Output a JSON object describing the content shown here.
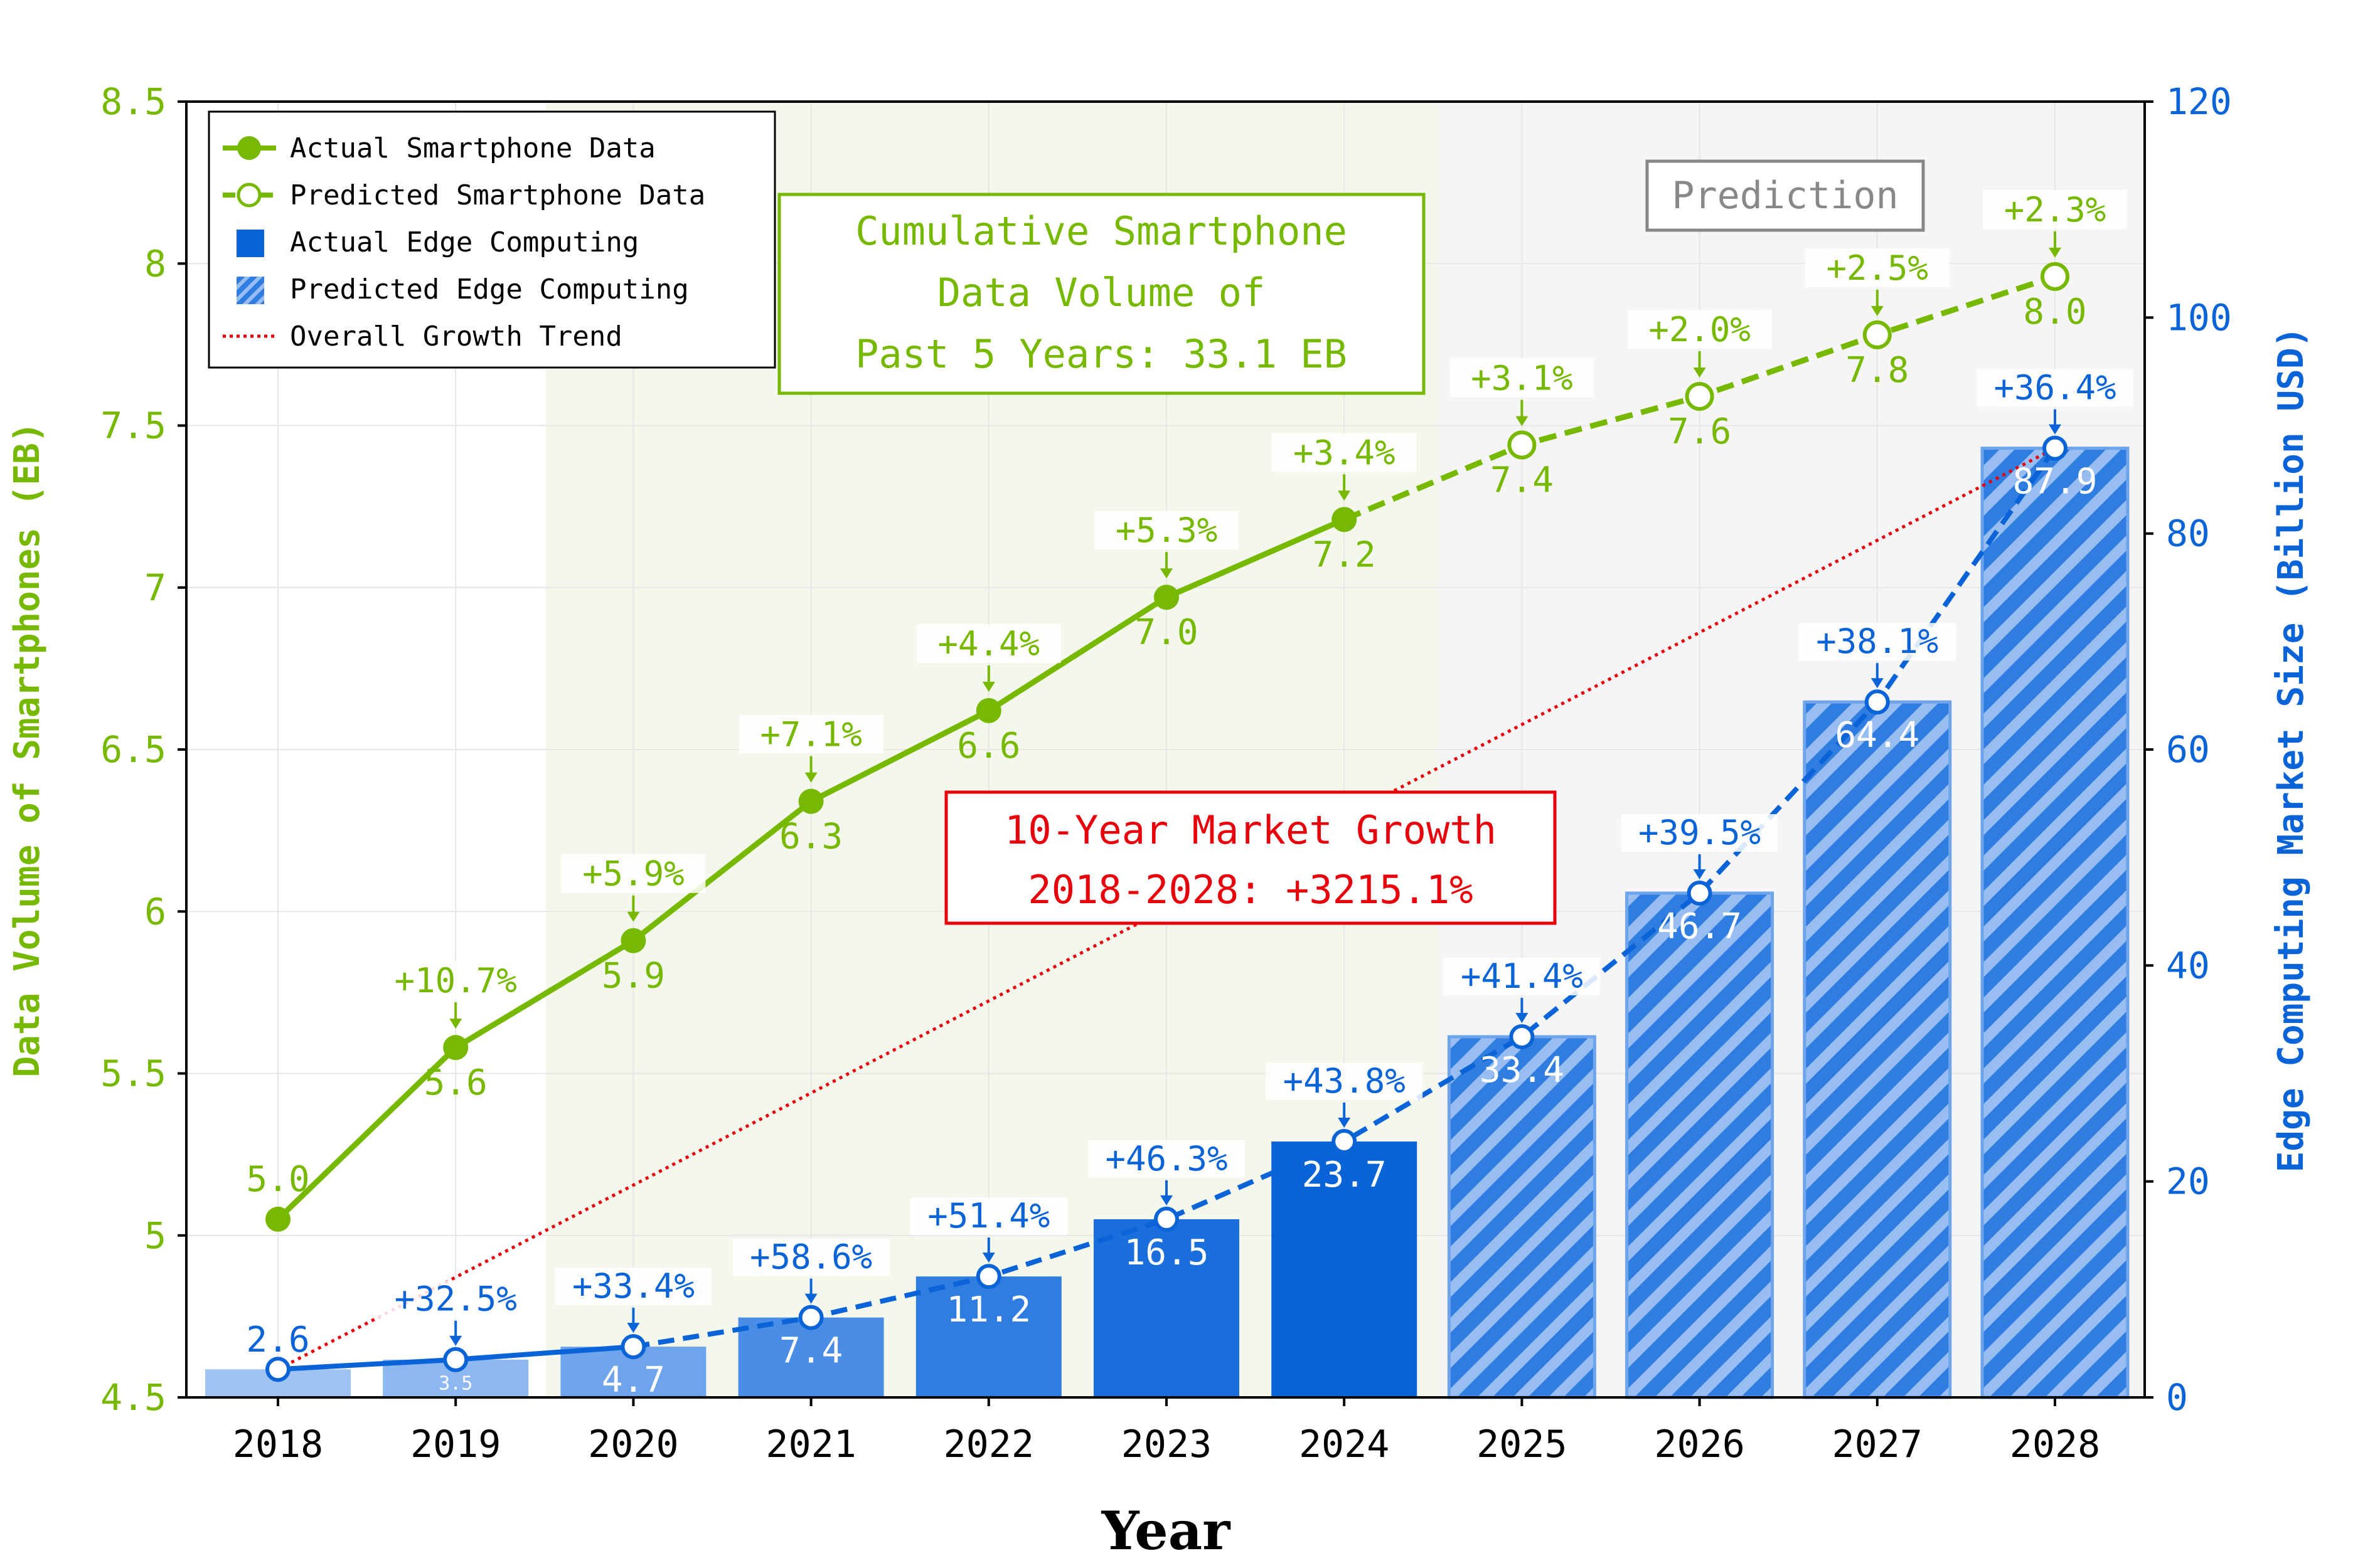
{
  "colors": {
    "smartphone": "#76b900",
    "edge": "#0a64d8",
    "trend": "#e8000b",
    "prediction_text": "#888888"
  },
  "chart_data": {
    "type": "bar+line",
    "xlabel": "Year",
    "ylabel_left": "Data Volume of Smartphones (EB)",
    "ylabel_right": "Edge Computing Market Size (Billion USD)",
    "ylim_left": [
      4.5,
      8.5
    ],
    "ylim_right": [
      0,
      120
    ],
    "left_ticks": [
      "4.5",
      "5",
      "5.5",
      "6",
      "6.5",
      "7",
      "7.5",
      "8",
      "8.5"
    ],
    "right_ticks": [
      "0",
      "20",
      "40",
      "60",
      "80",
      "100",
      "120"
    ],
    "categories": [
      "2018",
      "2019",
      "2020",
      "2021",
      "2022",
      "2023",
      "2024",
      "2025",
      "2026",
      "2027",
      "2028"
    ],
    "smartphone": {
      "values": [
        5.05,
        5.58,
        5.91,
        6.34,
        6.62,
        6.97,
        7.21,
        7.44,
        7.59,
        7.78,
        7.96
      ],
      "labels": [
        "5.0",
        "5.6",
        "5.9",
        "6.3",
        "6.6",
        "7.0",
        "7.2",
        "7.4",
        "7.6",
        "7.8",
        "8.0"
      ],
      "growth": [
        "",
        "+10.7%",
        "+5.9%",
        "+7.1%",
        "+4.4%",
        "+5.3%",
        "+3.4%",
        "+3.1%",
        "+2.0%",
        "+2.5%",
        "+2.3%"
      ],
      "actual_count": 7
    },
    "edge": {
      "values": [
        2.6,
        3.5,
        4.7,
        7.4,
        11.2,
        16.5,
        23.7,
        33.4,
        46.7,
        64.4,
        87.9
      ],
      "labels": [
        "2.6",
        "3.5",
        "4.7",
        "7.4",
        "11.2",
        "16.5",
        "23.7",
        "33.4",
        "46.7",
        "64.4",
        "87.9"
      ],
      "growth": [
        "",
        "+32.5%",
        "+33.4%",
        "+58.6%",
        "+51.4%",
        "+46.3%",
        "+43.8%",
        "+41.4%",
        "+39.5%",
        "+38.1%",
        "+36.4%"
      ],
      "actual_count": 7
    },
    "legend": {
      "position": "top-left",
      "items": [
        {
          "label": "Actual Smartphone Data",
          "kind": "line-filled"
        },
        {
          "label": "Predicted Smartphone Data",
          "kind": "line-hollow"
        },
        {
          "label": "Actual Edge Computing",
          "kind": "square"
        },
        {
          "label": "Predicted Edge Computing",
          "kind": "square-hatched"
        },
        {
          "label": "Overall Growth Trend",
          "kind": "dotted"
        }
      ]
    },
    "annotations": {
      "cumulative": [
        "Cumulative Smartphone",
        "Data Volume of",
        "Past 5 Years: 33.1 EB"
      ],
      "market_growth": [
        "10-Year Market Growth",
        "2018-2028: +3215.1%"
      ],
      "prediction": "Prediction"
    },
    "grid": true
  }
}
